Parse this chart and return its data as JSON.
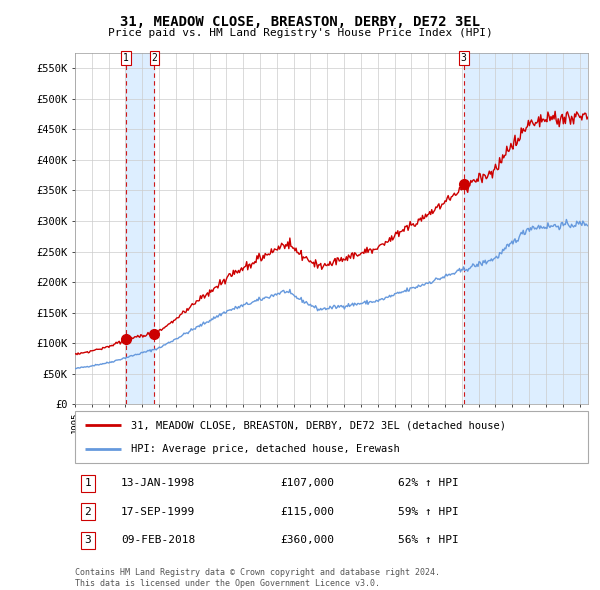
{
  "title": "31, MEADOW CLOSE, BREASTON, DERBY, DE72 3EL",
  "subtitle": "Price paid vs. HM Land Registry's House Price Index (HPI)",
  "legend_line1": "31, MEADOW CLOSE, BREASTON, DERBY, DE72 3EL (detached house)",
  "legend_line2": "HPI: Average price, detached house, Erewash",
  "footnote1": "Contains HM Land Registry data © Crown copyright and database right 2024.",
  "footnote2": "This data is licensed under the Open Government Licence v3.0.",
  "transactions": [
    {
      "num": 1,
      "date": "13-JAN-1998",
      "price": "£107,000",
      "hpi": "62% ↑ HPI"
    },
    {
      "num": 2,
      "date": "17-SEP-1999",
      "price": "£115,000",
      "hpi": "59% ↑ HPI"
    },
    {
      "num": 3,
      "date": "09-FEB-2018",
      "price": "£360,000",
      "hpi": "56% ↑ HPI"
    }
  ],
  "sale_dates": [
    1998.04,
    1999.72,
    2018.11
  ],
  "sale_prices": [
    107000,
    115000,
    360000
  ],
  "hpi_color": "#6699DD",
  "price_color": "#CC0000",
  "vline_color": "#CC0000",
  "shade_color": "#DDEEFF",
  "ylim": [
    0,
    575000
  ],
  "yticks": [
    0,
    50000,
    100000,
    150000,
    200000,
    250000,
    300000,
    350000,
    400000,
    450000,
    500000,
    550000
  ],
  "xlim_start": 1995,
  "xlim_end": 2025.5,
  "background_color": "#ffffff",
  "grid_color": "#cccccc"
}
